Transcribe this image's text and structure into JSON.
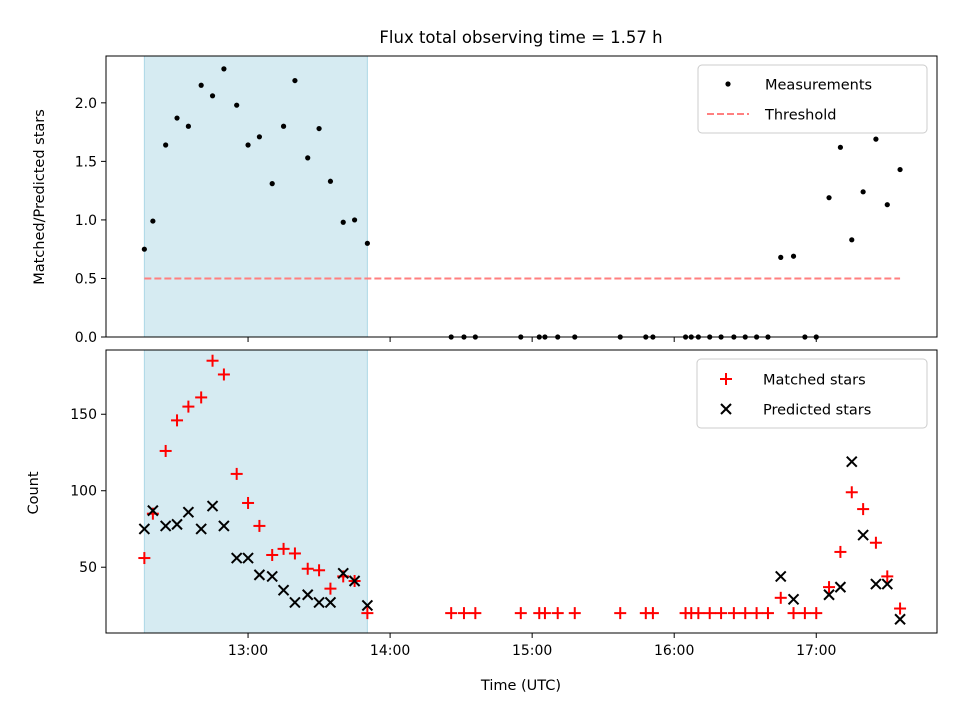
{
  "figure": {
    "title": "Flux total observing time = 1.57 h"
  },
  "chart_data": [
    {
      "type": "scatter",
      "panel": "top",
      "ylabel": "Matched/Predicted stars",
      "xlabel": "",
      "x_unit": "hours UTC",
      "xlim": [
        12.0,
        17.85
      ],
      "ylim": [
        0,
        2.4
      ],
      "yticks": [
        0.0,
        0.5,
        1.0,
        1.5,
        2.0
      ],
      "ytick_labels": [
        "0.0",
        "0.5",
        "1.0",
        "1.5",
        "2.0"
      ],
      "xticks": [
        13,
        14,
        15,
        16,
        17
      ],
      "shaded_span": [
        12.27,
        13.84
      ],
      "shade_color": "#add8e6",
      "grid": false,
      "legend_placement": "top-right",
      "series": [
        {
          "name": "Measurements",
          "marker": "dot",
          "color": "#000000",
          "x": [
            12.27,
            12.33,
            12.42,
            12.5,
            12.58,
            12.67,
            12.75,
            12.83,
            12.92,
            13.0,
            13.08,
            13.17,
            13.25,
            13.33,
            13.42,
            13.5,
            13.58,
            13.67,
            13.75,
            13.84,
            14.43,
            14.52,
            14.6,
            14.92,
            15.05,
            15.09,
            15.18,
            15.3,
            15.62,
            15.8,
            15.85,
            16.08,
            16.12,
            16.17,
            16.25,
            16.33,
            16.42,
            16.5,
            16.58,
            16.66,
            16.75,
            16.84,
            16.92,
            17.0,
            17.09,
            17.17,
            17.25,
            17.33,
            17.42,
            17.5,
            17.59
          ],
          "y": [
            0.75,
            0.99,
            1.64,
            1.87,
            1.8,
            2.15,
            2.06,
            2.29,
            1.98,
            1.64,
            1.71,
            1.31,
            1.8,
            2.19,
            1.53,
            1.78,
            1.33,
            0.98,
            1.0,
            0.8,
            0,
            0,
            0,
            0,
            0,
            0,
            0,
            0,
            0,
            0,
            0,
            0,
            0,
            0,
            0,
            0,
            0,
            0,
            0,
            0,
            0.68,
            0.69,
            0,
            0,
            1.19,
            1.62,
            0.83,
            1.24,
            1.69,
            1.13,
            1.43
          ]
        },
        {
          "name": "Threshold",
          "style": "dashed-line",
          "color": "#ff7f7f",
          "x": [
            12.27,
            17.59
          ],
          "y": [
            0.5,
            0.5
          ]
        }
      ]
    },
    {
      "type": "scatter",
      "panel": "bottom",
      "ylabel": "Count",
      "xlabel": "Time (UTC)",
      "x_unit": "hours UTC",
      "xlim": [
        12.0,
        17.85
      ],
      "ylim": [
        7,
        192
      ],
      "yticks": [
        50,
        100,
        150
      ],
      "ytick_labels": [
        "50",
        "100",
        "150"
      ],
      "xticks": [
        13,
        14,
        15,
        16,
        17
      ],
      "xtick_labels": [
        "13:00",
        "14:00",
        "15:00",
        "16:00",
        "17:00"
      ],
      "shaded_span": [
        12.27,
        13.84
      ],
      "shade_color": "#add8e6",
      "grid": false,
      "legend_placement": "top-right",
      "series": [
        {
          "name": "Matched stars",
          "marker": "plus",
          "color": "#ff0000",
          "x": [
            12.27,
            12.33,
            12.42,
            12.5,
            12.58,
            12.67,
            12.75,
            12.83,
            12.92,
            13.0,
            13.08,
            13.17,
            13.25,
            13.33,
            13.42,
            13.5,
            13.58,
            13.67,
            13.75,
            13.84,
            14.43,
            14.52,
            14.6,
            14.92,
            15.05,
            15.09,
            15.18,
            15.3,
            15.62,
            15.8,
            15.85,
            16.08,
            16.12,
            16.17,
            16.25,
            16.33,
            16.42,
            16.5,
            16.58,
            16.66,
            16.75,
            16.84,
            16.92,
            17.0,
            17.09,
            17.17,
            17.25,
            17.33,
            17.42,
            17.5,
            17.59
          ],
          "y": [
            56,
            85,
            126,
            146,
            155,
            161,
            185,
            176,
            111,
            92,
            77,
            58,
            62,
            59,
            49,
            48,
            36,
            44,
            41,
            20,
            20,
            20,
            20,
            20,
            20,
            20,
            20,
            20,
            20,
            20,
            20,
            20,
            20,
            20,
            20,
            20,
            20,
            20,
            20,
            20,
            30,
            20,
            20,
            20,
            37,
            60,
            99,
            88,
            66,
            44,
            23
          ]
        },
        {
          "name": "Predicted stars",
          "marker": "x",
          "color": "#000000",
          "x": [
            12.27,
            12.33,
            12.42,
            12.5,
            12.58,
            12.67,
            12.75,
            12.83,
            12.92,
            13.0,
            13.08,
            13.17,
            13.25,
            13.33,
            13.42,
            13.5,
            13.58,
            13.67,
            13.75,
            13.84,
            16.75,
            16.84,
            17.09,
            17.17,
            17.25,
            17.33,
            17.42,
            17.5,
            17.59
          ],
          "y": [
            75,
            87,
            77,
            78,
            86,
            75,
            90,
            77,
            56,
            56,
            45,
            44,
            35,
            27,
            32,
            27,
            27,
            46,
            41,
            25,
            44,
            29,
            32,
            37,
            119,
            71,
            39,
            39,
            16
          ]
        }
      ]
    }
  ]
}
